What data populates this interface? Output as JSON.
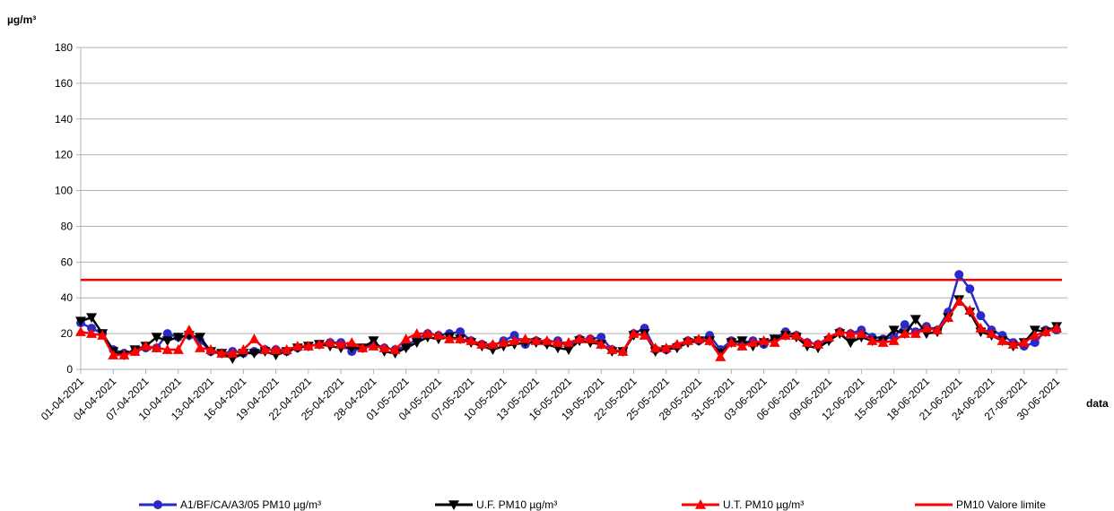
{
  "chart_data": {
    "type": "line",
    "y_label": "µg/m³",
    "x_label": "data",
    "categories": [
      "01-04-2021",
      null,
      null,
      "04-04-2021",
      null,
      null,
      "07-04-2021",
      null,
      null,
      "10-04-2021",
      null,
      null,
      "13-04-2021",
      null,
      null,
      "16-04-2021",
      null,
      null,
      "19-04-2021",
      null,
      null,
      "22-04-2021",
      null,
      null,
      "25-04-2021",
      null,
      null,
      "28-04-2021",
      null,
      null,
      "01-05-2021",
      null,
      null,
      "04-05-2021",
      null,
      null,
      "07-05-2021",
      null,
      null,
      "10-05-2021",
      null,
      null,
      "13-05-2021",
      null,
      null,
      "16-05-2021",
      null,
      null,
      "19-05-2021",
      null,
      null,
      "22-05-2021",
      null,
      null,
      "25-05-2021",
      null,
      null,
      "28-05-2021",
      null,
      null,
      "31-05-2021",
      null,
      null,
      "03-06-2021",
      null,
      null,
      "06-06-2021",
      null,
      null,
      "09-06-2021",
      null,
      null,
      "12-06-2021",
      null,
      null,
      "15-06-2021",
      null,
      null,
      "18-06-2021",
      null,
      null,
      "21-06-2021",
      null,
      null,
      "24-06-2021",
      null,
      null,
      "27-06-2021",
      null,
      null,
      "30-06-2021"
    ],
    "series": [
      {
        "name": "A1/BF/CA/A3/05 PM10 µg/m³",
        "color": "#2a2acb",
        "marker": "circle",
        "values": [
          26,
          23,
          20,
          11,
          9,
          10,
          12,
          12,
          20,
          18,
          19,
          16,
          10,
          9,
          10,
          9,
          10,
          11,
          11,
          10,
          12,
          13,
          14,
          15,
          15,
          10,
          12,
          14,
          12,
          11,
          13,
          17,
          20,
          19,
          20,
          21,
          16,
          14,
          13,
          16,
          19,
          14,
          16,
          15,
          16,
          13,
          17,
          17,
          18,
          11,
          10,
          20,
          23,
          11,
          11,
          13,
          16,
          16,
          19,
          11,
          16,
          15,
          16,
          14,
          17,
          21,
          19,
          15,
          14,
          17,
          21,
          20,
          22,
          18,
          17,
          18,
          25,
          21,
          24,
          22,
          32,
          53,
          45,
          30,
          22,
          19,
          15,
          13,
          15,
          22,
          22
        ]
      },
      {
        "name": "U.F. PM10 µg/m³",
        "color": "#000000",
        "marker": "triangle-down",
        "values": [
          27,
          29,
          20,
          10,
          8,
          11,
          13,
          18,
          16,
          18,
          19,
          18,
          10,
          9,
          6,
          9,
          9,
          10,
          8,
          10,
          12,
          13,
          14,
          13,
          12,
          12,
          12,
          16,
          10,
          9,
          12,
          15,
          18,
          17,
          18,
          17,
          15,
          13,
          11,
          13,
          14,
          15,
          15,
          14,
          12,
          11,
          16,
          15,
          14,
          10,
          10,
          19,
          20,
          10,
          11,
          12,
          15,
          16,
          16,
          9,
          15,
          16,
          13,
          15,
          17,
          19,
          18,
          13,
          12,
          16,
          20,
          15,
          18,
          16,
          16,
          22,
          20,
          28,
          20,
          21,
          29,
          39,
          32,
          21,
          19,
          16,
          13,
          15,
          22,
          21,
          24
        ]
      },
      {
        "name": "U.T. PM10 µg/m³",
        "color": "#ff0000",
        "marker": "triangle-up",
        "values": [
          21,
          20,
          19,
          8,
          8,
          10,
          13,
          12,
          11,
          11,
          22,
          12,
          11,
          9,
          9,
          11,
          17,
          11,
          11,
          11,
          13,
          13,
          14,
          15,
          14,
          15,
          12,
          13,
          12,
          11,
          17,
          20,
          20,
          19,
          17,
          17,
          16,
          14,
          14,
          15,
          16,
          17,
          16,
          16,
          15,
          15,
          17,
          17,
          14,
          11,
          10,
          20,
          19,
          12,
          12,
          14,
          16,
          17,
          16,
          7,
          15,
          13,
          15,
          16,
          15,
          19,
          19,
          15,
          14,
          18,
          21,
          20,
          20,
          16,
          15,
          16,
          20,
          20,
          23,
          22,
          29,
          38,
          33,
          23,
          20,
          16,
          14,
          15,
          19,
          21,
          23
        ]
      }
    ],
    "limit": {
      "name": "PM10 Valore limite",
      "color": "#ff0000",
      "value": 50
    },
    "ylim": [
      0,
      180
    ],
    "yticks": [
      0,
      20,
      40,
      60,
      80,
      100,
      120,
      140,
      160,
      180
    ],
    "grid": true
  }
}
